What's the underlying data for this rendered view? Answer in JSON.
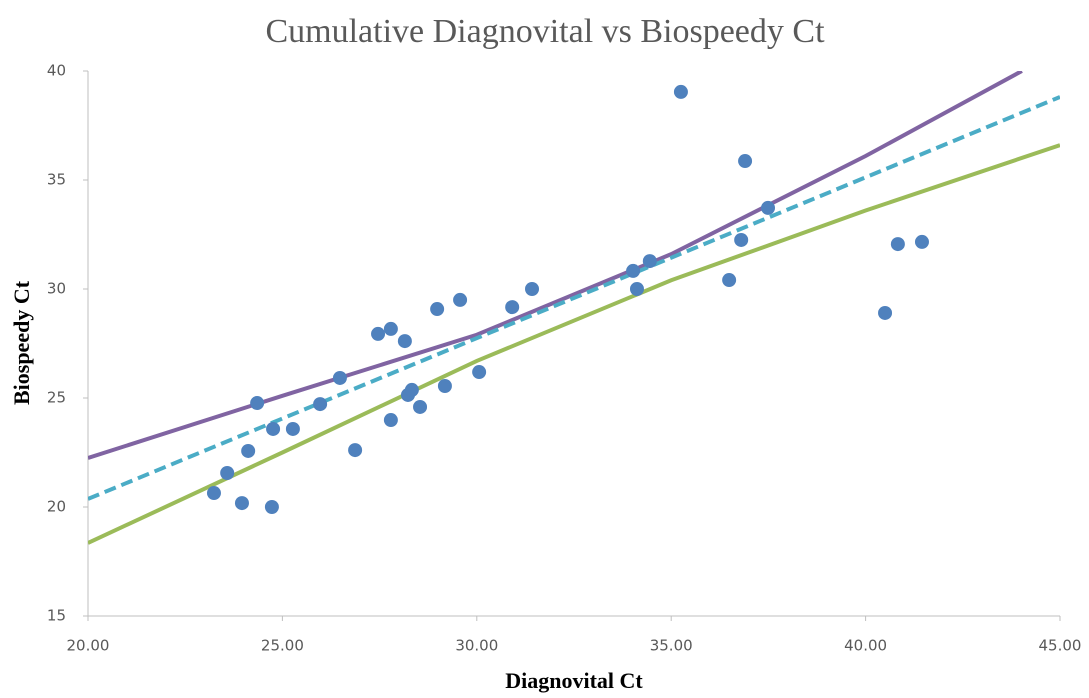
{
  "chart_data": {
    "type": "scatter",
    "title": "Cumulative Diagnovital vs Biospeedy Ct",
    "xlabel": "Diagnovital Ct",
    "ylabel": "Biospeedy Ct",
    "xlim": [
      20,
      45
    ],
    "ylim": [
      15,
      40
    ],
    "xticks": [
      {
        "value": 20,
        "label": "20.00"
      },
      {
        "value": 25,
        "label": "25.00"
      },
      {
        "value": 30,
        "label": "30.00"
      },
      {
        "value": 35,
        "label": "35.00"
      },
      {
        "value": 40,
        "label": "40.00"
      },
      {
        "value": 45,
        "label": "45.00"
      }
    ],
    "yticks": [
      15,
      20,
      25,
      30,
      35,
      40
    ],
    "grid": false,
    "series": [
      {
        "type": "scatter",
        "color": "#4f81bd",
        "x": [
          23.24,
          23.58,
          23.96,
          24.12,
          24.35,
          24.73,
          24.76,
          25.27,
          25.97,
          26.48,
          26.87,
          27.46,
          27.79,
          27.79,
          28.15,
          28.23,
          28.33,
          28.54,
          28.98,
          29.18,
          29.57,
          30.06,
          30.91,
          31.42,
          34.02,
          34.12,
          34.45,
          35.25,
          36.49,
          36.8,
          36.9,
          37.49,
          40.5,
          40.83,
          41.45
        ],
        "values": [
          20.64,
          21.56,
          20.18,
          22.57,
          24.77,
          20.0,
          23.58,
          23.58,
          24.72,
          25.92,
          22.61,
          27.94,
          28.17,
          23.99,
          27.61,
          25.14,
          25.37,
          24.59,
          29.08,
          25.55,
          29.5,
          26.19,
          29.17,
          30.0,
          30.83,
          30.0,
          31.28,
          39.04,
          30.41,
          32.25,
          35.87,
          33.72,
          28.9,
          32.06,
          32.16
        ]
      },
      {
        "type": "line",
        "color": "#8064a2",
        "dashed": false,
        "x": [
          20,
          25,
          30,
          35,
          40,
          44.02
        ],
        "values": [
          22.25,
          25.1,
          27.9,
          31.6,
          36.1,
          40
        ]
      },
      {
        "type": "line",
        "color": "#4bacc6",
        "dashed": true,
        "x": [
          20,
          45
        ],
        "values": [
          20.37,
          38.81
        ]
      },
      {
        "type": "line",
        "color": "#9bbb59",
        "dashed": false,
        "x": [
          20,
          25,
          30,
          35,
          40,
          45
        ],
        "values": [
          18.35,
          22.5,
          26.7,
          30.4,
          33.6,
          36.6
        ]
      }
    ]
  }
}
